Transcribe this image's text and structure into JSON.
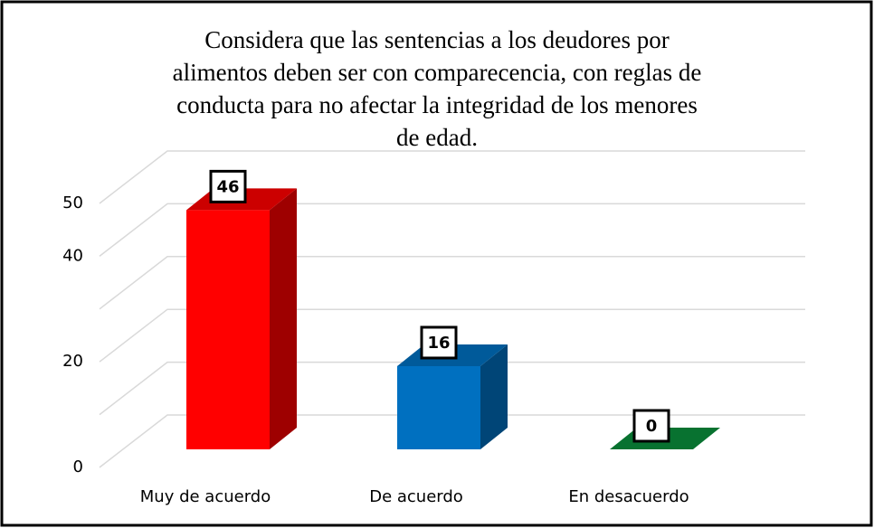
{
  "chart_data": {
    "type": "bar3d",
    "title": "Considera que las sentencias a los deudores por alimentos deben ser con comparecencia, con reglas de conducta para no afectar la integridad de los menores de edad.",
    "categories": [
      "Muy de acuerdo",
      "De acuerdo",
      "En desacuerdo"
    ],
    "values": [
      46,
      16,
      0
    ],
    "colors": [
      "#ff0000",
      "#0070c0",
      "#0a8f3c"
    ],
    "ylim": [
      0,
      50
    ],
    "yticks": [
      0,
      20,
      40,
      50
    ],
    "grid": [
      0,
      10,
      20,
      30,
      40,
      50
    ]
  }
}
